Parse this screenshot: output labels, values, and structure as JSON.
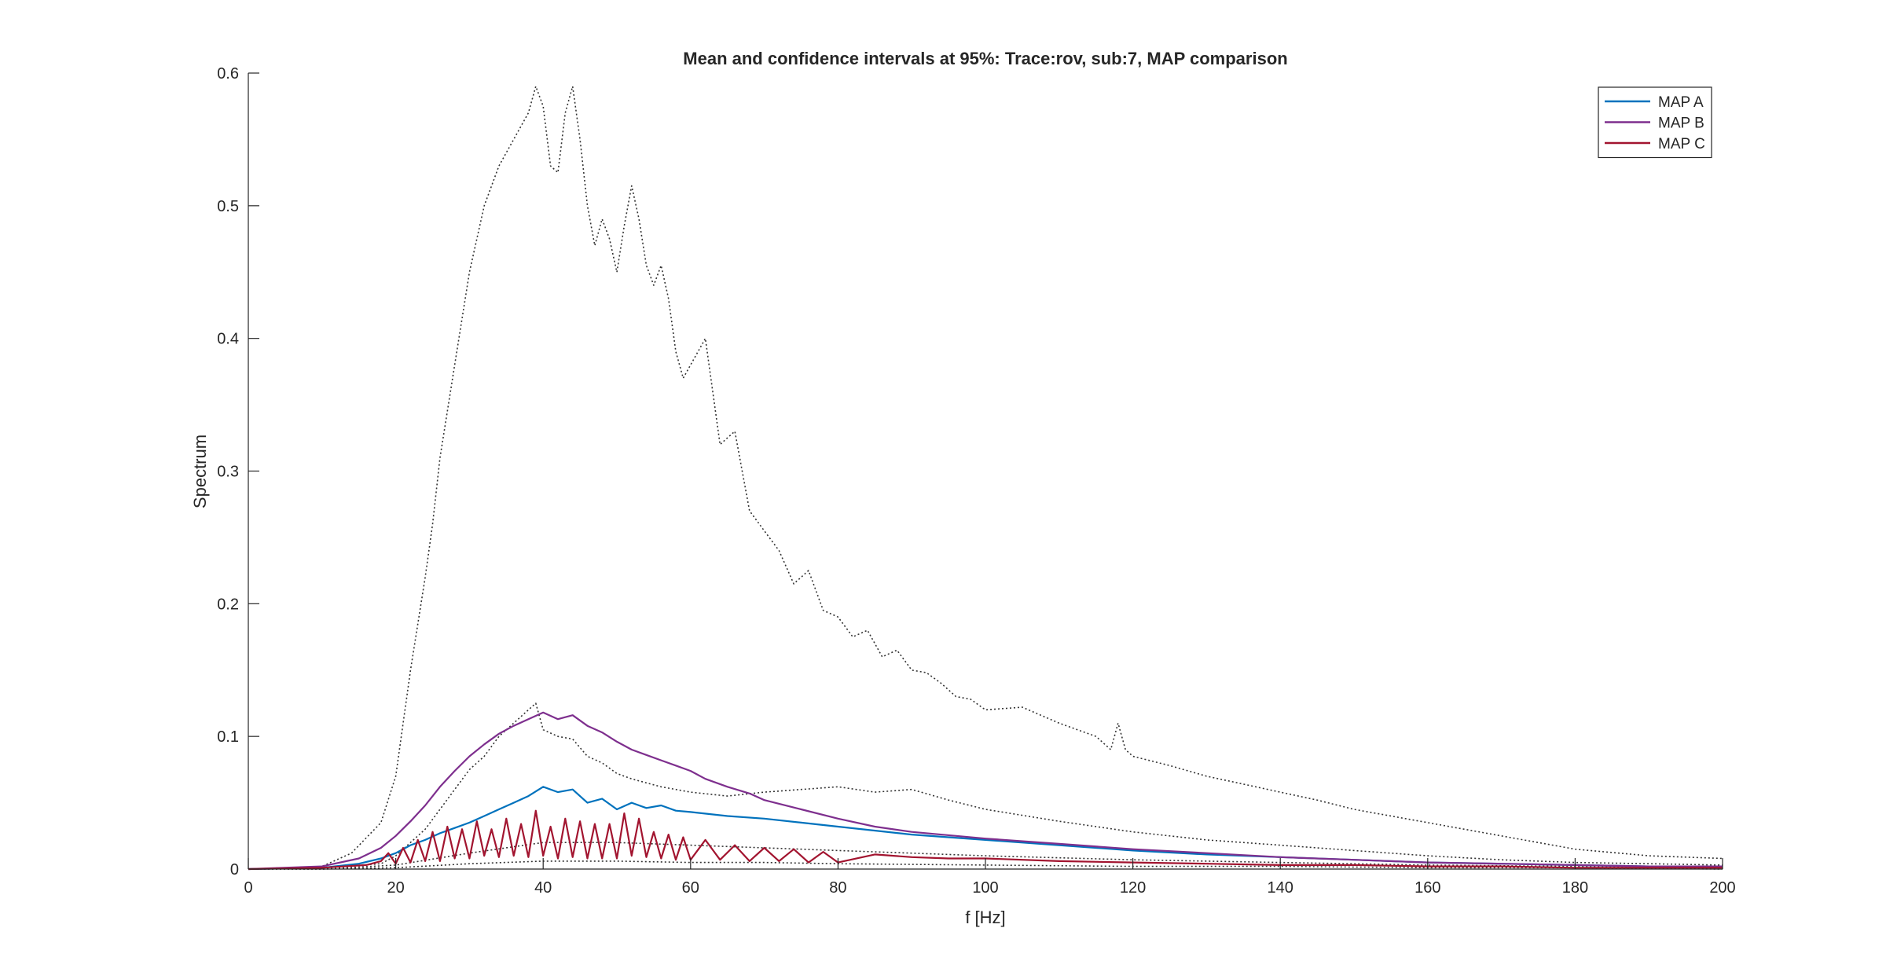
{
  "chart_data": {
    "type": "line",
    "title": "Mean and confidence intervals at 95%: Trace:rov, sub:7, MAP comparison",
    "xlabel": "f [Hz]",
    "ylabel": "Spectrum",
    "xlim": [
      0,
      200
    ],
    "ylim": [
      0,
      0.6
    ],
    "xticks": [
      "0",
      "20",
      "40",
      "60",
      "80",
      "100",
      "120",
      "140",
      "160",
      "180",
      "200"
    ],
    "yticks": [
      "0",
      "0.1",
      "0.2",
      "0.3",
      "0.4",
      "0.5",
      "0.6"
    ],
    "grid": false,
    "legend_position": "top-right",
    "series": [
      {
        "name": "MAP A",
        "color": "#0072BD",
        "style": "solid",
        "x": [
          0,
          10,
          15,
          18,
          20,
          22,
          24,
          26,
          28,
          30,
          32,
          34,
          36,
          38,
          40,
          42,
          44,
          46,
          48,
          50,
          52,
          54,
          56,
          58,
          60,
          65,
          70,
          75,
          80,
          90,
          100,
          110,
          120,
          130,
          140,
          150,
          160,
          170,
          180,
          190,
          200
        ],
        "values": [
          0,
          0.001,
          0.004,
          0.008,
          0.012,
          0.018,
          0.022,
          0.027,
          0.031,
          0.035,
          0.04,
          0.045,
          0.05,
          0.055,
          0.062,
          0.058,
          0.06,
          0.05,
          0.053,
          0.045,
          0.05,
          0.046,
          0.048,
          0.044,
          0.043,
          0.04,
          0.038,
          0.035,
          0.032,
          0.026,
          0.022,
          0.018,
          0.014,
          0.011,
          0.009,
          0.007,
          0.005,
          0.004,
          0.003,
          0.002,
          0.002
        ]
      },
      {
        "name": "MAP B",
        "color": "#7E2F8E",
        "style": "solid",
        "x": [
          0,
          10,
          15,
          18,
          20,
          22,
          24,
          26,
          28,
          30,
          32,
          34,
          36,
          38,
          40,
          42,
          44,
          46,
          48,
          50,
          52,
          54,
          56,
          58,
          60,
          62,
          65,
          68,
          70,
          75,
          80,
          85,
          90,
          100,
          110,
          120,
          130,
          140,
          150,
          160,
          170,
          180,
          190,
          200
        ],
        "values": [
          0,
          0.002,
          0.008,
          0.016,
          0.025,
          0.036,
          0.048,
          0.062,
          0.074,
          0.085,
          0.094,
          0.102,
          0.108,
          0.113,
          0.118,
          0.113,
          0.116,
          0.108,
          0.103,
          0.096,
          0.09,
          0.086,
          0.082,
          0.078,
          0.074,
          0.068,
          0.062,
          0.057,
          0.052,
          0.045,
          0.038,
          0.032,
          0.028,
          0.023,
          0.019,
          0.015,
          0.012,
          0.009,
          0.007,
          0.005,
          0.004,
          0.003,
          0.002,
          0.002
        ]
      },
      {
        "name": "MAP C",
        "color": "#A2142F",
        "style": "solid",
        "x": [
          0,
          10,
          16,
          18,
          19,
          20,
          21,
          22,
          23,
          24,
          25,
          26,
          27,
          28,
          29,
          30,
          31,
          32,
          33,
          34,
          35,
          36,
          37,
          38,
          39,
          40,
          41,
          42,
          43,
          44,
          45,
          46,
          47,
          48,
          49,
          50,
          51,
          52,
          53,
          54,
          55,
          56,
          57,
          58,
          59,
          60,
          62,
          64,
          66,
          68,
          70,
          72,
          74,
          76,
          78,
          80,
          85,
          90,
          95,
          100,
          110,
          120,
          130,
          140,
          150,
          160,
          170,
          180,
          190,
          200
        ],
        "values": [
          0,
          0.001,
          0.003,
          0.006,
          0.012,
          0.004,
          0.016,
          0.005,
          0.022,
          0.006,
          0.028,
          0.006,
          0.032,
          0.008,
          0.03,
          0.008,
          0.036,
          0.01,
          0.03,
          0.009,
          0.038,
          0.01,
          0.034,
          0.009,
          0.044,
          0.01,
          0.032,
          0.008,
          0.038,
          0.009,
          0.036,
          0.008,
          0.034,
          0.008,
          0.034,
          0.008,
          0.042,
          0.01,
          0.038,
          0.009,
          0.028,
          0.008,
          0.026,
          0.007,
          0.024,
          0.007,
          0.022,
          0.007,
          0.018,
          0.006,
          0.016,
          0.006,
          0.015,
          0.005,
          0.013,
          0.005,
          0.011,
          0.009,
          0.008,
          0.008,
          0.006,
          0.005,
          0.004,
          0.003,
          0.003,
          0.002,
          0.002,
          0.001,
          0.001,
          0.001
        ]
      },
      {
        "color": "#333333",
        "style": "dotted",
        "x": [
          0,
          10,
          14,
          18,
          20,
          22,
          24,
          25,
          26,
          28,
          30,
          32,
          34,
          36,
          38,
          39,
          40,
          41,
          42,
          43,
          44,
          45,
          46,
          47,
          48,
          49,
          50,
          51,
          52,
          53,
          54,
          55,
          56,
          57,
          58,
          59,
          60,
          62,
          64,
          66,
          68,
          70,
          72,
          74,
          76,
          78,
          80,
          82,
          84,
          86,
          88,
          90,
          92,
          94,
          96,
          98,
          100,
          105,
          110,
          115,
          117,
          118,
          119,
          120,
          125,
          130,
          135,
          140,
          145,
          150,
          160,
          170,
          180,
          190,
          200
        ],
        "values": [
          0,
          0.002,
          0.012,
          0.035,
          0.07,
          0.15,
          0.22,
          0.26,
          0.31,
          0.38,
          0.45,
          0.5,
          0.53,
          0.55,
          0.57,
          0.59,
          0.575,
          0.53,
          0.525,
          0.57,
          0.59,
          0.55,
          0.5,
          0.47,
          0.49,
          0.475,
          0.45,
          0.485,
          0.515,
          0.49,
          0.455,
          0.44,
          0.455,
          0.43,
          0.39,
          0.37,
          0.38,
          0.4,
          0.32,
          0.33,
          0.27,
          0.255,
          0.24,
          0.215,
          0.225,
          0.195,
          0.19,
          0.175,
          0.18,
          0.16,
          0.165,
          0.15,
          0.148,
          0.14,
          0.13,
          0.128,
          0.12,
          0.122,
          0.11,
          0.1,
          0.09,
          0.11,
          0.09,
          0.085,
          0.078,
          0.07,
          0.064,
          0.058,
          0.052,
          0.045,
          0.035,
          0.025,
          0.015,
          0.01,
          0.008
        ]
      },
      {
        "color": "#333333",
        "style": "dotted",
        "x": [
          0,
          10,
          18,
          20,
          22,
          24,
          26,
          28,
          30,
          32,
          34,
          36,
          38,
          39,
          40,
          42,
          44,
          46,
          48,
          50,
          52,
          54,
          56,
          58,
          60,
          65,
          70,
          75,
          80,
          85,
          90,
          95,
          100,
          110,
          120,
          130,
          140,
          150,
          160,
          170,
          180,
          190,
          200
        ],
        "values": [
          0,
          0.001,
          0.004,
          0.01,
          0.02,
          0.03,
          0.045,
          0.06,
          0.075,
          0.085,
          0.1,
          0.11,
          0.12,
          0.125,
          0.105,
          0.1,
          0.098,
          0.085,
          0.08,
          0.072,
          0.068,
          0.065,
          0.062,
          0.06,
          0.058,
          0.055,
          0.058,
          0.06,
          0.062,
          0.058,
          0.06,
          0.052,
          0.045,
          0.036,
          0.028,
          0.022,
          0.018,
          0.014,
          0.01,
          0.007,
          0.005,
          0.004,
          0.003
        ]
      },
      {
        "color": "#333333",
        "style": "dotted",
        "x": [
          0,
          10,
          20,
          30,
          40,
          50,
          60,
          70,
          80,
          100,
          120,
          140,
          160,
          180,
          200
        ],
        "values": [
          0,
          0,
          0.003,
          0.012,
          0.02,
          0.02,
          0.018,
          0.016,
          0.014,
          0.01,
          0.007,
          0.005,
          0.003,
          0.002,
          0.001
        ]
      },
      {
        "color": "#333333",
        "style": "dotted",
        "x": [
          0,
          10,
          20,
          30,
          40,
          50,
          60,
          70,
          80,
          100,
          120,
          140,
          160,
          180,
          200
        ],
        "values": [
          0,
          0,
          0.001,
          0.004,
          0.006,
          0.006,
          0.005,
          0.005,
          0.004,
          0.003,
          0.002,
          0.002,
          0.001,
          0.001,
          0
        ]
      }
    ]
  }
}
